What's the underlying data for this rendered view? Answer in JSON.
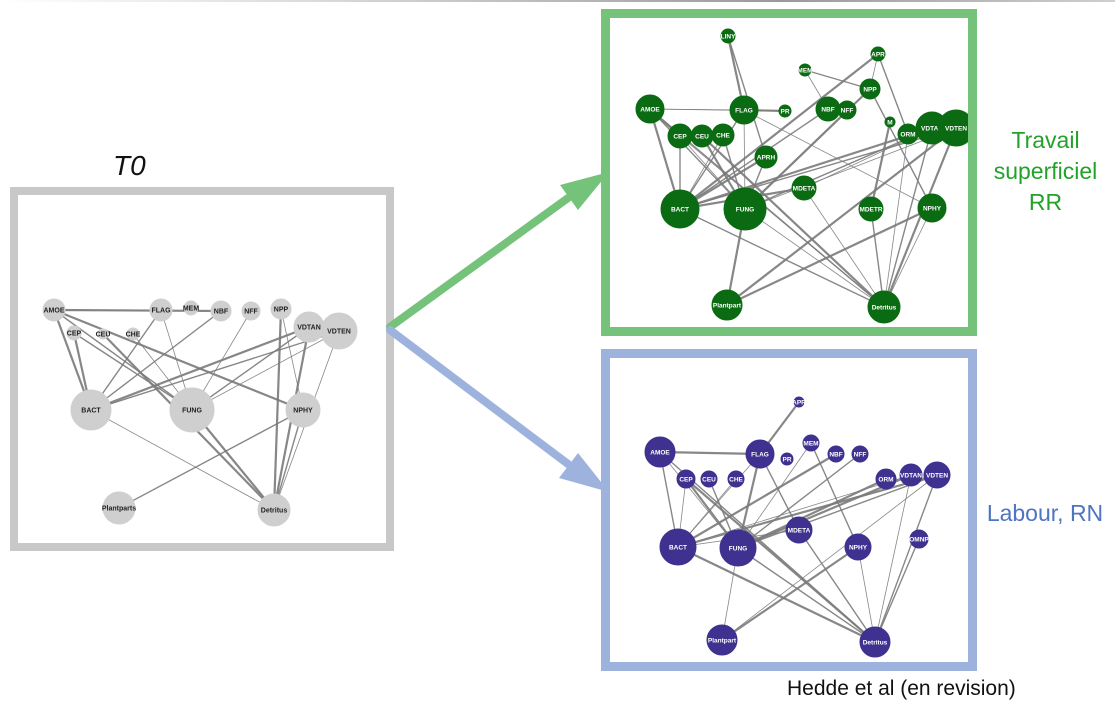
{
  "labels": {
    "t0": "T0",
    "rr_line1": "Travail",
    "rr_line2": "superficiel",
    "rr_line3": "RR",
    "rn": "Labour, RN",
    "citation": "Hedde et al (en revision)"
  },
  "colors": {
    "t0_frame": "#c8c8c8",
    "t0_node": "#cfcfcf",
    "rr_frame": "#75c37a",
    "rr_node": "#0b6b12",
    "rn_frame": "#9db3dd",
    "rn_node": "#3e3190",
    "edge": "#7a7a7a",
    "rr_text": "#22a22a",
    "rn_text": "#4f74c0"
  },
  "networks": {
    "t0": {
      "nodes": [
        {
          "id": "AMOE",
          "label": "AMOE"
        },
        {
          "id": "CEP",
          "label": "CEP"
        },
        {
          "id": "CEU",
          "label": "CEU"
        },
        {
          "id": "CHE",
          "label": "CHE"
        },
        {
          "id": "FLAG",
          "label": "FLAG"
        },
        {
          "id": "MEM",
          "label": "MEM"
        },
        {
          "id": "NBF",
          "label": "NBF"
        },
        {
          "id": "NFF",
          "label": "NFF"
        },
        {
          "id": "NPP",
          "label": "NPP"
        },
        {
          "id": "VDTAN",
          "label": "VDTAN"
        },
        {
          "id": "VDTEN",
          "label": "VDTEN"
        },
        {
          "id": "BACT",
          "label": "BACT"
        },
        {
          "id": "FUNG",
          "label": "FUNG"
        },
        {
          "id": "NPHY",
          "label": "NPHY"
        },
        {
          "id": "Plantparts",
          "label": "Plantparts"
        },
        {
          "id": "Detritus",
          "label": "Detritus"
        }
      ],
      "edges": [
        [
          "AMOE",
          "BACT"
        ],
        [
          "AMOE",
          "FUNG"
        ],
        [
          "AMOE",
          "FLAG"
        ],
        [
          "AMOE",
          "NPHY"
        ],
        [
          "FLAG",
          "BACT"
        ],
        [
          "FLAG",
          "FUNG"
        ],
        [
          "CEP",
          "BACT"
        ],
        [
          "CEP",
          "FUNG"
        ],
        [
          "CHE",
          "FUNG"
        ],
        [
          "CEU",
          "Detritus"
        ],
        [
          "NBF",
          "BACT"
        ],
        [
          "NFF",
          "FUNG"
        ],
        [
          "NPP",
          "Detritus"
        ],
        [
          "VDTEN",
          "BACT"
        ],
        [
          "VDTEN",
          "FUNG"
        ],
        [
          "VDTAN",
          "BACT"
        ],
        [
          "VDTAN",
          "FUNG"
        ],
        [
          "VDTEN",
          "Detritus"
        ],
        [
          "VDTAN",
          "Detritus"
        ],
        [
          "NPHY",
          "Plantparts"
        ],
        [
          "BACT",
          "Detritus"
        ],
        [
          "FUNG",
          "Detritus"
        ],
        [
          "NPHY",
          "Detritus"
        ],
        [
          "NPP",
          "NPHY"
        ],
        [
          "AMOE",
          "NBF"
        ]
      ]
    },
    "rr": {
      "nodes": [
        {
          "id": "LINY",
          "label": "LINY"
        },
        {
          "id": "APR",
          "label": "APR"
        },
        {
          "id": "MEM",
          "label": "MEM"
        },
        {
          "id": "NPP",
          "label": "NPP"
        },
        {
          "id": "AMOE",
          "label": "AMOE"
        },
        {
          "id": "FLAG",
          "label": "FLAG"
        },
        {
          "id": "PR",
          "label": "PR"
        },
        {
          "id": "NBF",
          "label": "NBF"
        },
        {
          "id": "NFF",
          "label": "NFF"
        },
        {
          "id": "M",
          "label": "M"
        },
        {
          "id": "ORM",
          "label": "ORM"
        },
        {
          "id": "VDTAN",
          "label": "VDTAN"
        },
        {
          "id": "VDTEN",
          "label": "VDTEN"
        },
        {
          "id": "CEP",
          "label": "CEP"
        },
        {
          "id": "CEU",
          "label": "CEU"
        },
        {
          "id": "CHE",
          "label": "CHE"
        },
        {
          "id": "APRH",
          "label": "APRH"
        },
        {
          "id": "MDETA",
          "label": "MDETA"
        },
        {
          "id": "BACT",
          "label": "BACT"
        },
        {
          "id": "FUNG",
          "label": "FUNG"
        },
        {
          "id": "MDETR",
          "label": "MDETR"
        },
        {
          "id": "NPHY",
          "label": "NPHY"
        },
        {
          "id": "Plantparts",
          "label": "Plantpart"
        },
        {
          "id": "Detritus",
          "label": "Detritus"
        }
      ],
      "edges": [
        [
          "LINY",
          "FLAG"
        ],
        [
          "LINY",
          "APRH"
        ],
        [
          "APR",
          "NPP"
        ],
        [
          "APR",
          "BACT"
        ],
        [
          "MEM",
          "NPP"
        ],
        [
          "MEM",
          "NBF"
        ],
        [
          "AMOE",
          "BACT"
        ],
        [
          "AMOE",
          "FUNG"
        ],
        [
          "AMOE",
          "FLAG"
        ],
        [
          "AMOE",
          "CEP"
        ],
        [
          "FLAG",
          "BACT"
        ],
        [
          "FLAG",
          "FUNG"
        ],
        [
          "FLAG",
          "PR"
        ],
        [
          "NBF",
          "BACT"
        ],
        [
          "NFF",
          "FUNG"
        ],
        [
          "NPP",
          "FUNG"
        ],
        [
          "CEP",
          "BACT"
        ],
        [
          "CEP",
          "FUNG"
        ],
        [
          "CEU",
          "FUNG"
        ],
        [
          "CHE",
          "FUNG"
        ],
        [
          "CHE",
          "BACT"
        ],
        [
          "APRH",
          "BACT"
        ],
        [
          "APRH",
          "FUNG"
        ],
        [
          "MDETA",
          "Detritus"
        ],
        [
          "MDETA",
          "BACT"
        ],
        [
          "VDTEN",
          "BACT"
        ],
        [
          "VDTEN",
          "FUNG"
        ],
        [
          "VDTAN",
          "BACT"
        ],
        [
          "VDTAN",
          "FUNG"
        ],
        [
          "VDTAN",
          "MDETA"
        ],
        [
          "VDTEN",
          "Detritus"
        ],
        [
          "VDTAN",
          "Detritus"
        ],
        [
          "ORM",
          "Detritus"
        ],
        [
          "M",
          "MDETR"
        ],
        [
          "MDETR",
          "Detritus"
        ],
        [
          "NPHY",
          "Detritus"
        ],
        [
          "NPHY",
          "Plantparts"
        ],
        [
          "BACT",
          "Detritus"
        ],
        [
          "FUNG",
          "Detritus"
        ],
        [
          "FUNG",
          "Plantparts"
        ],
        [
          "AMOE",
          "Detritus"
        ],
        [
          "CEP",
          "Detritus"
        ],
        [
          "CEU",
          "Detritus"
        ],
        [
          "NPP",
          "NPHY"
        ],
        [
          "FLAG",
          "NPHY"
        ],
        [
          "VDTEN",
          "Plantparts"
        ],
        [
          "APR",
          "ORM"
        ],
        [
          "AMOE",
          "PR"
        ]
      ]
    },
    "rn": {
      "nodes": [
        {
          "id": "APR",
          "label": "APR"
        },
        {
          "id": "AMOE",
          "label": "AMOE"
        },
        {
          "id": "FLAG",
          "label": "FLAG"
        },
        {
          "id": "MEM",
          "label": "MEM"
        },
        {
          "id": "PR",
          "label": "PR"
        },
        {
          "id": "NBF",
          "label": "NBF"
        },
        {
          "id": "NFF",
          "label": "NFF"
        },
        {
          "id": "CEP",
          "label": "CEP"
        },
        {
          "id": "CEU",
          "label": "CEU"
        },
        {
          "id": "CHE",
          "label": "CHE"
        },
        {
          "id": "ORM",
          "label": "ORM"
        },
        {
          "id": "VDTAN",
          "label": "VDTAN"
        },
        {
          "id": "VDTEN",
          "label": "VDTEN"
        },
        {
          "id": "MDETA",
          "label": "MDETA"
        },
        {
          "id": "BACT",
          "label": "BACT"
        },
        {
          "id": "FUNG",
          "label": "FUNG"
        },
        {
          "id": "NPHY",
          "label": "NPHY"
        },
        {
          "id": "OMNP",
          "label": "OMNP"
        },
        {
          "id": "Plantparts",
          "label": "Plantpart"
        },
        {
          "id": "Detritus",
          "label": "Detritus"
        }
      ],
      "edges": [
        [
          "APR",
          "FLAG"
        ],
        [
          "AMOE",
          "BACT"
        ],
        [
          "AMOE",
          "FUNG"
        ],
        [
          "AMOE",
          "FLAG"
        ],
        [
          "AMOE",
          "Detritus"
        ],
        [
          "FLAG",
          "BACT"
        ],
        [
          "FLAG",
          "FUNG"
        ],
        [
          "FLAG",
          "MDETA"
        ],
        [
          "MEM",
          "FUNG"
        ],
        [
          "NBF",
          "BACT"
        ],
        [
          "NFF",
          "FUNG"
        ],
        [
          "CEP",
          "BACT"
        ],
        [
          "CEP",
          "FUNG"
        ],
        [
          "CEU",
          "FUNG"
        ],
        [
          "CHE",
          "BACT"
        ],
        [
          "VDTEN",
          "BACT"
        ],
        [
          "VDTEN",
          "FUNG"
        ],
        [
          "VDTAN",
          "BACT"
        ],
        [
          "VDTAN",
          "FUNG"
        ],
        [
          "VDTEN",
          "Detritus"
        ],
        [
          "VDTAN",
          "Detritus"
        ],
        [
          "ORM",
          "FUNG"
        ],
        [
          "MDETA",
          "Detritus"
        ],
        [
          "MDETA",
          "BACT"
        ],
        [
          "BACT",
          "Detritus"
        ],
        [
          "FUNG",
          "Detritus"
        ],
        [
          "NPHY",
          "Detritus"
        ],
        [
          "NPHY",
          "Plantparts"
        ],
        [
          "OMNP",
          "Detritus"
        ],
        [
          "FUNG",
          "Plantparts"
        ],
        [
          "CEP",
          "Detritus"
        ],
        [
          "MEM",
          "NPHY"
        ],
        [
          "VDTEN",
          "Plantparts"
        ]
      ]
    }
  }
}
